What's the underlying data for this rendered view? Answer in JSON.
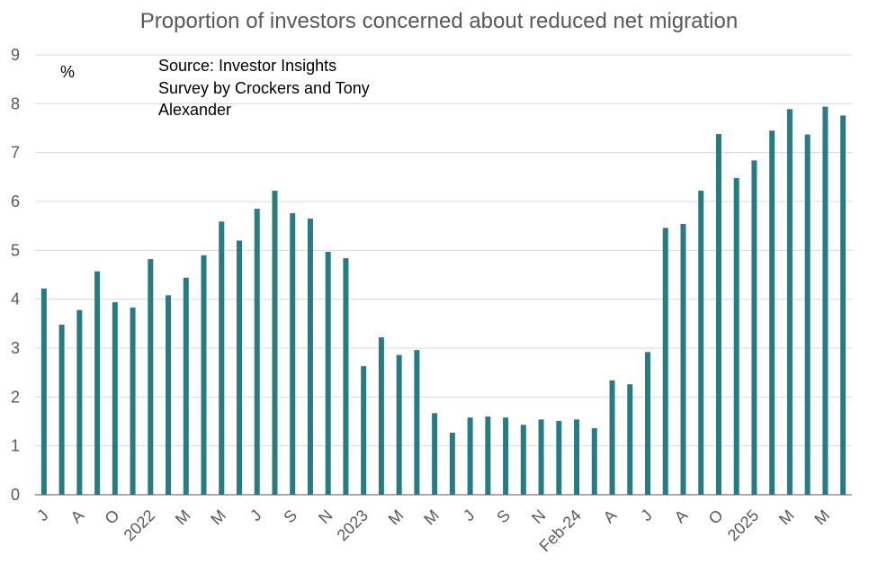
{
  "title": "Proportion of investors concerned about reduced net migration",
  "unit_label": "%",
  "source_lines": [
    "Source: Investor Insights",
    "Survey by Crockers and Tony",
    "Alexander"
  ],
  "colors": {
    "bar": "#267B85",
    "grid": "#D9D9D9",
    "axis": "#595959"
  },
  "chart_data": {
    "type": "bar",
    "title": "Proportion of investors concerned about reduced net migration",
    "xlabel": "",
    "ylabel": "%",
    "ylim": [
      0,
      9
    ],
    "yticks": [
      "0",
      "1",
      "2",
      "3",
      "4",
      "5",
      "6",
      "7",
      "8",
      "9"
    ],
    "grid": true,
    "legend": "none",
    "categories": [
      "J",
      "",
      "A",
      "",
      "O",
      "",
      "2022",
      "",
      "M",
      "",
      "M",
      "",
      "J",
      "",
      "S",
      "",
      "N",
      "",
      "2023",
      "",
      "M",
      "",
      "M",
      "",
      "J",
      "",
      "S",
      "",
      "N",
      "",
      "Feb-24",
      "",
      "A",
      "",
      "J",
      "",
      "A",
      "",
      "O",
      "",
      "2025",
      "",
      "M",
      "",
      "M",
      ""
    ],
    "values": [
      4.22,
      3.48,
      3.78,
      4.57,
      3.94,
      3.83,
      4.82,
      4.08,
      4.44,
      4.9,
      5.59,
      5.2,
      5.85,
      6.22,
      5.76,
      5.65,
      4.97,
      4.84,
      2.63,
      3.22,
      2.86,
      2.96,
      1.67,
      1.27,
      1.58,
      1.6,
      1.58,
      1.43,
      1.54,
      1.51,
      1.54,
      1.36,
      2.34,
      2.26,
      2.92,
      5.46,
      5.54,
      6.22,
      7.38,
      6.48,
      6.84,
      7.45,
      7.89,
      7.37,
      7.94,
      7.76
    ]
  }
}
